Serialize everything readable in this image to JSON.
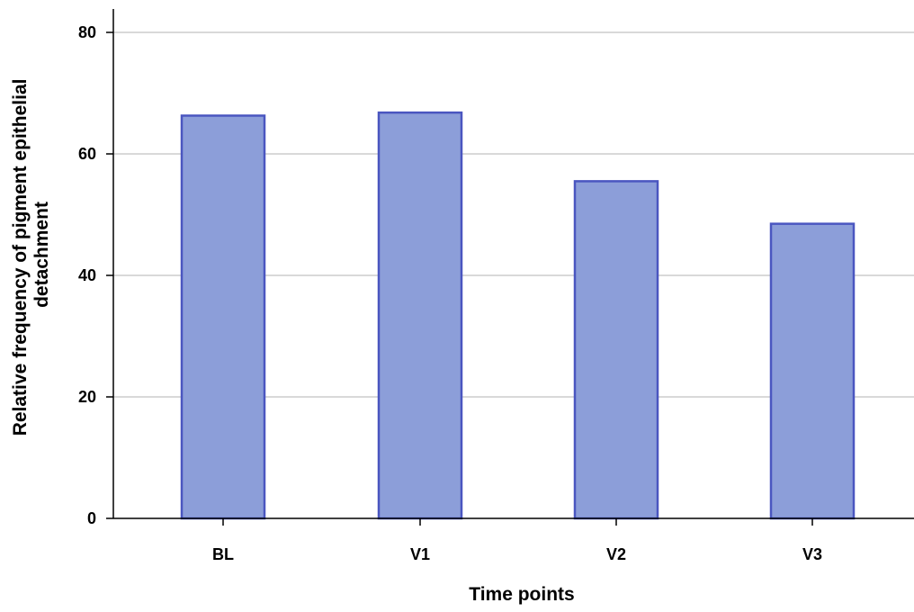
{
  "chart_data": {
    "type": "bar",
    "categories": [
      "BL",
      "V1",
      "V2",
      "V3"
    ],
    "values": [
      66.3,
      66.8,
      55.5,
      48.5
    ],
    "xlabel": "Time points",
    "ylabel": "Relative frequency of pigment epithelial detachment",
    "ylabel_lines": [
      "Relative frequency of pigment epithelial",
      "detachment"
    ],
    "ylim": [
      0,
      80
    ],
    "yticks": [
      0,
      20,
      40,
      60,
      80
    ],
    "grid": true,
    "bar_fill": "#8c9ed9",
    "bar_stroke": "#4a56c0",
    "grid_color": "#b3b3b3",
    "axis_color": "#000000"
  }
}
